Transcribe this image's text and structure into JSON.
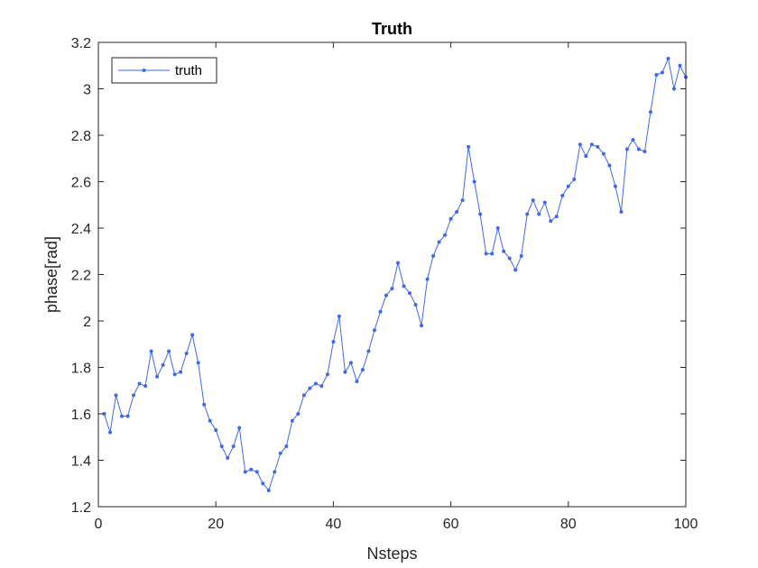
{
  "chart_data": {
    "type": "line",
    "title": "Truth",
    "xlabel": "Nsteps",
    "ylabel": "phase[rad]",
    "xlim": [
      0,
      100
    ],
    "ylim": [
      1.2,
      3.2
    ],
    "x_ticks": [
      0,
      20,
      40,
      60,
      80,
      100
    ],
    "x_tick_labels": [
      "0",
      "20",
      "40",
      "60",
      "80",
      "100"
    ],
    "y_ticks": [
      1.2,
      1.4,
      1.6,
      1.8,
      2,
      2.2,
      2.4,
      2.6,
      2.8,
      3,
      3.2
    ],
    "y_tick_labels": [
      "1.2",
      "1.4",
      "1.6",
      "1.8",
      "2",
      "2.2",
      "2.4",
      "2.6",
      "2.8",
      "3",
      "3.2"
    ],
    "grid": false,
    "legend": {
      "position": "top-left",
      "entries": [
        "truth"
      ]
    },
    "series": [
      {
        "name": "truth",
        "color": "#4169E1",
        "marker": "dot",
        "x": [
          1,
          2,
          3,
          4,
          5,
          6,
          7,
          8,
          9,
          10,
          11,
          12,
          13,
          14,
          15,
          16,
          17,
          18,
          19,
          20,
          21,
          22,
          23,
          24,
          25,
          26,
          27,
          28,
          29,
          30,
          31,
          32,
          33,
          34,
          35,
          36,
          37,
          38,
          39,
          40,
          41,
          42,
          43,
          44,
          45,
          46,
          47,
          48,
          49,
          50,
          51,
          52,
          53,
          54,
          55,
          56,
          57,
          58,
          59,
          60,
          61,
          62,
          63,
          64,
          65,
          66,
          67,
          68,
          69,
          70,
          71,
          72,
          73,
          74,
          75,
          76,
          77,
          78,
          79,
          80,
          81,
          82,
          83,
          84,
          85,
          86,
          87,
          88,
          89,
          90,
          91,
          92,
          93,
          94,
          95,
          96,
          97,
          98,
          99,
          100
        ],
        "y": [
          1.6,
          1.52,
          1.68,
          1.59,
          1.59,
          1.68,
          1.73,
          1.72,
          1.87,
          1.76,
          1.81,
          1.87,
          1.77,
          1.78,
          1.86,
          1.94,
          1.82,
          1.64,
          1.57,
          1.53,
          1.46,
          1.41,
          1.46,
          1.54,
          1.35,
          1.36,
          1.35,
          1.3,
          1.27,
          1.35,
          1.43,
          1.46,
          1.57,
          1.6,
          1.68,
          1.71,
          1.73,
          1.72,
          1.77,
          1.91,
          2.02,
          1.78,
          1.82,
          1.74,
          1.79,
          1.87,
          1.96,
          2.04,
          2.11,
          2.14,
          2.25,
          2.15,
          2.12,
          2.07,
          1.98,
          2.18,
          2.28,
          2.34,
          2.37,
          2.44,
          2.47,
          2.52,
          2.75,
          2.6,
          2.46,
          2.29,
          2.29,
          2.4,
          2.3,
          2.27,
          2.22,
          2.28,
          2.46,
          2.52,
          2.46,
          2.51,
          2.43,
          2.45,
          2.54,
          2.58,
          2.61,
          2.76,
          2.71,
          2.76,
          2.75,
          2.72,
          2.67,
          2.58,
          2.47,
          2.74,
          2.78,
          2.74,
          2.73,
          2.9,
          3.06,
          3.07,
          3.13,
          3.0,
          3.1,
          3.05
        ]
      }
    ]
  }
}
